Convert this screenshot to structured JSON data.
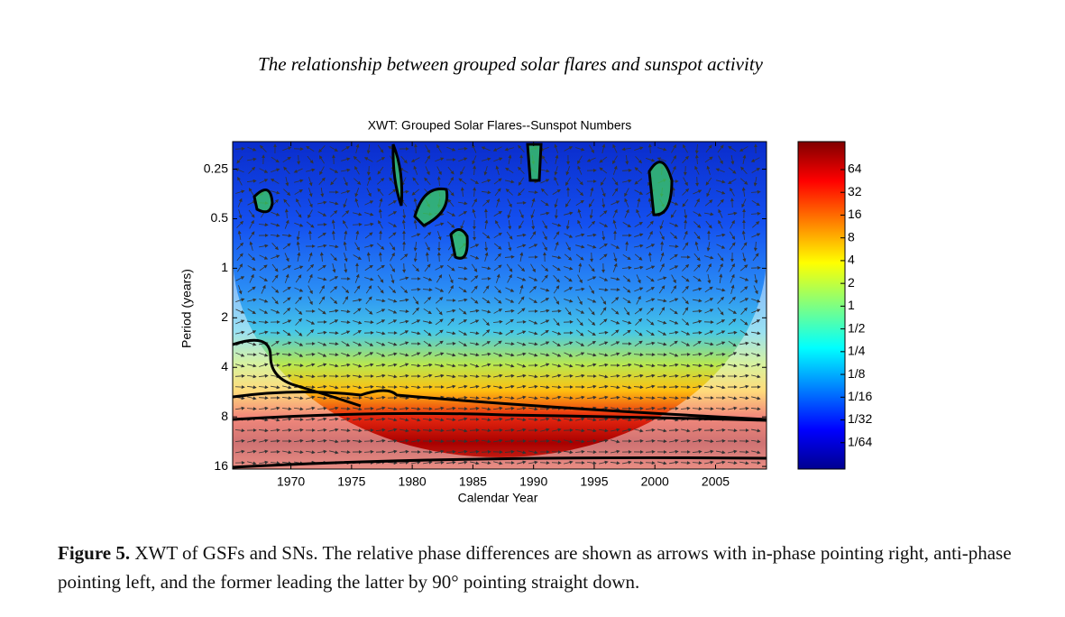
{
  "header": {
    "running_title": "The relationship between grouped solar flares and sunspot activity"
  },
  "chart_data": {
    "type": "heatmap",
    "title": "XWT: Grouped Solar Flares--Sunspot Numbers",
    "xlabel": "Calendar Year",
    "ylabel": "Period (years)",
    "xlim": [
      1965.2,
      2009.2
    ],
    "xticks": [
      1970,
      1975,
      1980,
      1985,
      1990,
      1995,
      2000,
      2005
    ],
    "ylim": [
      0.17,
      16.6
    ],
    "y_scale": "log2",
    "y_inverted": true,
    "yticks": [
      0.25,
      0.5,
      1,
      2,
      4,
      8,
      16
    ],
    "colorbar": {
      "scale": "log2",
      "lim": [
        0.007,
        150
      ],
      "ticks": [
        64,
        32,
        16,
        8,
        4,
        2,
        1,
        {
          "value": 0.5,
          "label": "1/2"
        },
        {
          "value": 0.25,
          "label": "1/4"
        },
        {
          "value": 0.125,
          "label": "1/8"
        },
        {
          "value": 0.0625,
          "label": "1/16"
        },
        {
          "value": 0.03125,
          "label": "1/32"
        },
        {
          "value": 0.015625,
          "label": "1/64"
        }
      ]
    }
  },
  "caption": {
    "label": "Figure 5.",
    "text": "XWT of GSFs and SNs. The relative phase differences are shown as arrows with in-phase pointing right, anti-phase pointing left, and the former leading the latter by 90° pointing straight down."
  }
}
